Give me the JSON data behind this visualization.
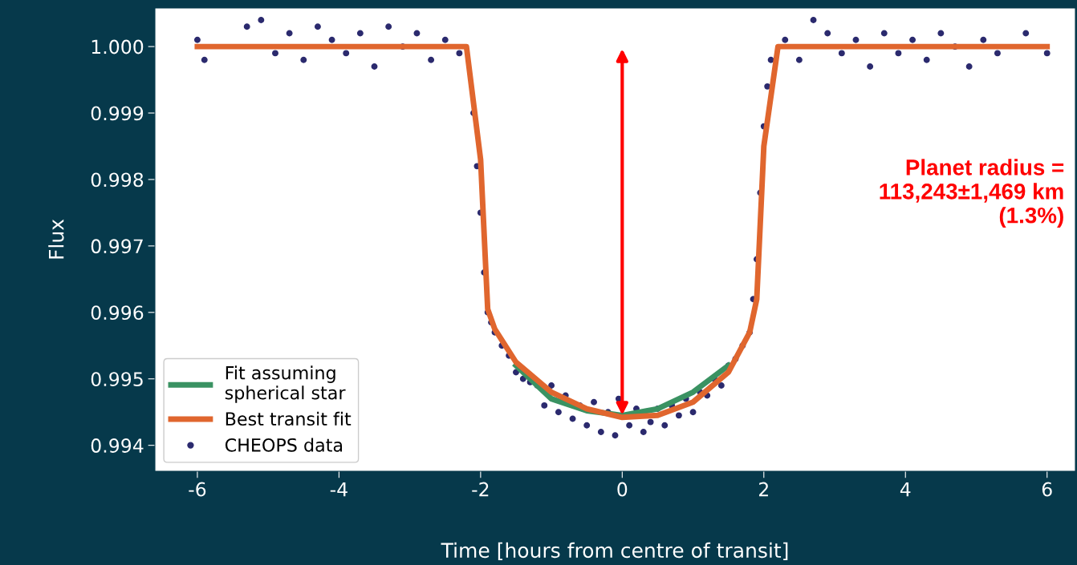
{
  "chart_data": {
    "type": "line",
    "xlabel": "Time [hours from centre of transit]",
    "ylabel": "Flux",
    "xlim": [
      -6.6,
      6.4
    ],
    "xticks": [
      -6,
      -4,
      -2,
      0,
      2,
      4,
      6
    ],
    "ylim": [
      0.99361,
      1.00058
    ],
    "yticks": [
      {
        "value": 0.994,
        "label": "0.994"
      },
      {
        "value": 0.995,
        "label": "0.995"
      },
      {
        "value": 0.996,
        "label": "0.996"
      },
      {
        "value": 0.997,
        "label": "0.997"
      },
      {
        "value": 0.998,
        "label": "0.998"
      },
      {
        "value": 0.999,
        "label": "0.999"
      },
      {
        "value": 1.0,
        "label": "1.000"
      }
    ],
    "grid": false,
    "legend": "bottom left",
    "annotations": [
      "Planet radius =\n113,243±1,469 km\n(1.3%)"
    ],
    "series": [
      {
        "name": "Fit assuming\nspherical star",
        "color": "#3a9262",
        "x": [
          -1.5,
          -1.0,
          -0.5,
          0,
          0.5,
          1.0,
          1.5
        ],
        "values": [
          0.9952,
          0.9947,
          0.99452,
          0.99445,
          0.99455,
          0.9948,
          0.9952
        ]
      },
      {
        "name": "Best transit fit",
        "color": "#e0662e",
        "x": [
          -6,
          -2.2,
          -2.0,
          -1.9,
          -1.8,
          -1.5,
          -1.0,
          -0.5,
          0,
          0.5,
          1.0,
          1.5,
          1.8,
          1.9,
          2.0,
          2.2,
          6
        ],
        "values": [
          1.0,
          1.0,
          0.9983,
          0.99605,
          0.99575,
          0.99525,
          0.9948,
          0.99455,
          0.99442,
          0.99445,
          0.99465,
          0.9951,
          0.9957,
          0.9962,
          0.9985,
          1.0,
          1.0
        ]
      },
      {
        "name": "CHEOPS data",
        "type": "scatter",
        "color": "#2b2a6e",
        "marker": "circle",
        "x": [
          -6,
          -5.9,
          -5.3,
          -5.1,
          -4.9,
          -4.7,
          -4.5,
          -4.3,
          -4.1,
          -3.9,
          -3.7,
          -3.5,
          -3.3,
          -3.1,
          -2.9,
          -2.7,
          -2.5,
          -2.3,
          -2.1,
          -2.05,
          -2.0,
          -1.95,
          -1.9,
          -1.85,
          -1.8,
          -1.7,
          -1.6,
          -1.5,
          -1.4,
          -1.3,
          -1.2,
          -1.1,
          -1.0,
          -0.9,
          -0.8,
          -0.7,
          -0.6,
          -0.5,
          -0.4,
          -0.3,
          -0.2,
          -0.1,
          -0.05,
          0.1,
          0.2,
          0.3,
          0.4,
          0.5,
          0.6,
          0.7,
          0.8,
          0.9,
          1.0,
          1.1,
          1.2,
          1.3,
          1.4,
          1.5,
          1.6,
          1.7,
          1.8,
          1.85,
          1.9,
          1.95,
          2.0,
          2.05,
          2.1,
          2.3,
          2.5,
          2.7,
          2.9,
          3.1,
          3.3,
          3.5,
          3.7,
          3.9,
          4.1,
          4.3,
          4.5,
          4.7,
          4.9,
          5.1,
          5.3,
          5.7,
          6.0
        ],
        "values": [
          1.0001,
          0.9998,
          1.0003,
          1.0004,
          0.9999,
          1.0002,
          0.9998,
          1.0003,
          1.0001,
          0.9999,
          1.0002,
          0.9997,
          1.0003,
          1.0,
          1.0002,
          0.9998,
          1.0001,
          0.9999,
          0.999,
          0.9982,
          0.9975,
          0.9966,
          0.996,
          0.99585,
          0.9957,
          0.9955,
          0.99535,
          0.9951,
          0.995,
          0.99495,
          0.9949,
          0.9946,
          0.9949,
          0.9945,
          0.99475,
          0.9944,
          0.9946,
          0.9943,
          0.99465,
          0.9942,
          0.9945,
          0.99415,
          0.9947,
          0.9943,
          0.99455,
          0.9942,
          0.99435,
          0.99455,
          0.9943,
          0.9946,
          0.99445,
          0.9947,
          0.9945,
          0.9948,
          0.99475,
          0.995,
          0.9949,
          0.9952,
          0.9953,
          0.9955,
          0.9957,
          0.9962,
          0.9968,
          0.9978,
          0.9988,
          0.9994,
          0.9998,
          1.0001,
          0.9998,
          1.0004,
          1.0002,
          0.9999,
          1.0001,
          0.9997,
          1.0002,
          0.9999,
          1.0001,
          0.9998,
          1.0002,
          1.0,
          0.9997,
          1.0001,
          0.9999,
          1.0002,
          0.9999
        ]
      }
    ]
  }
}
